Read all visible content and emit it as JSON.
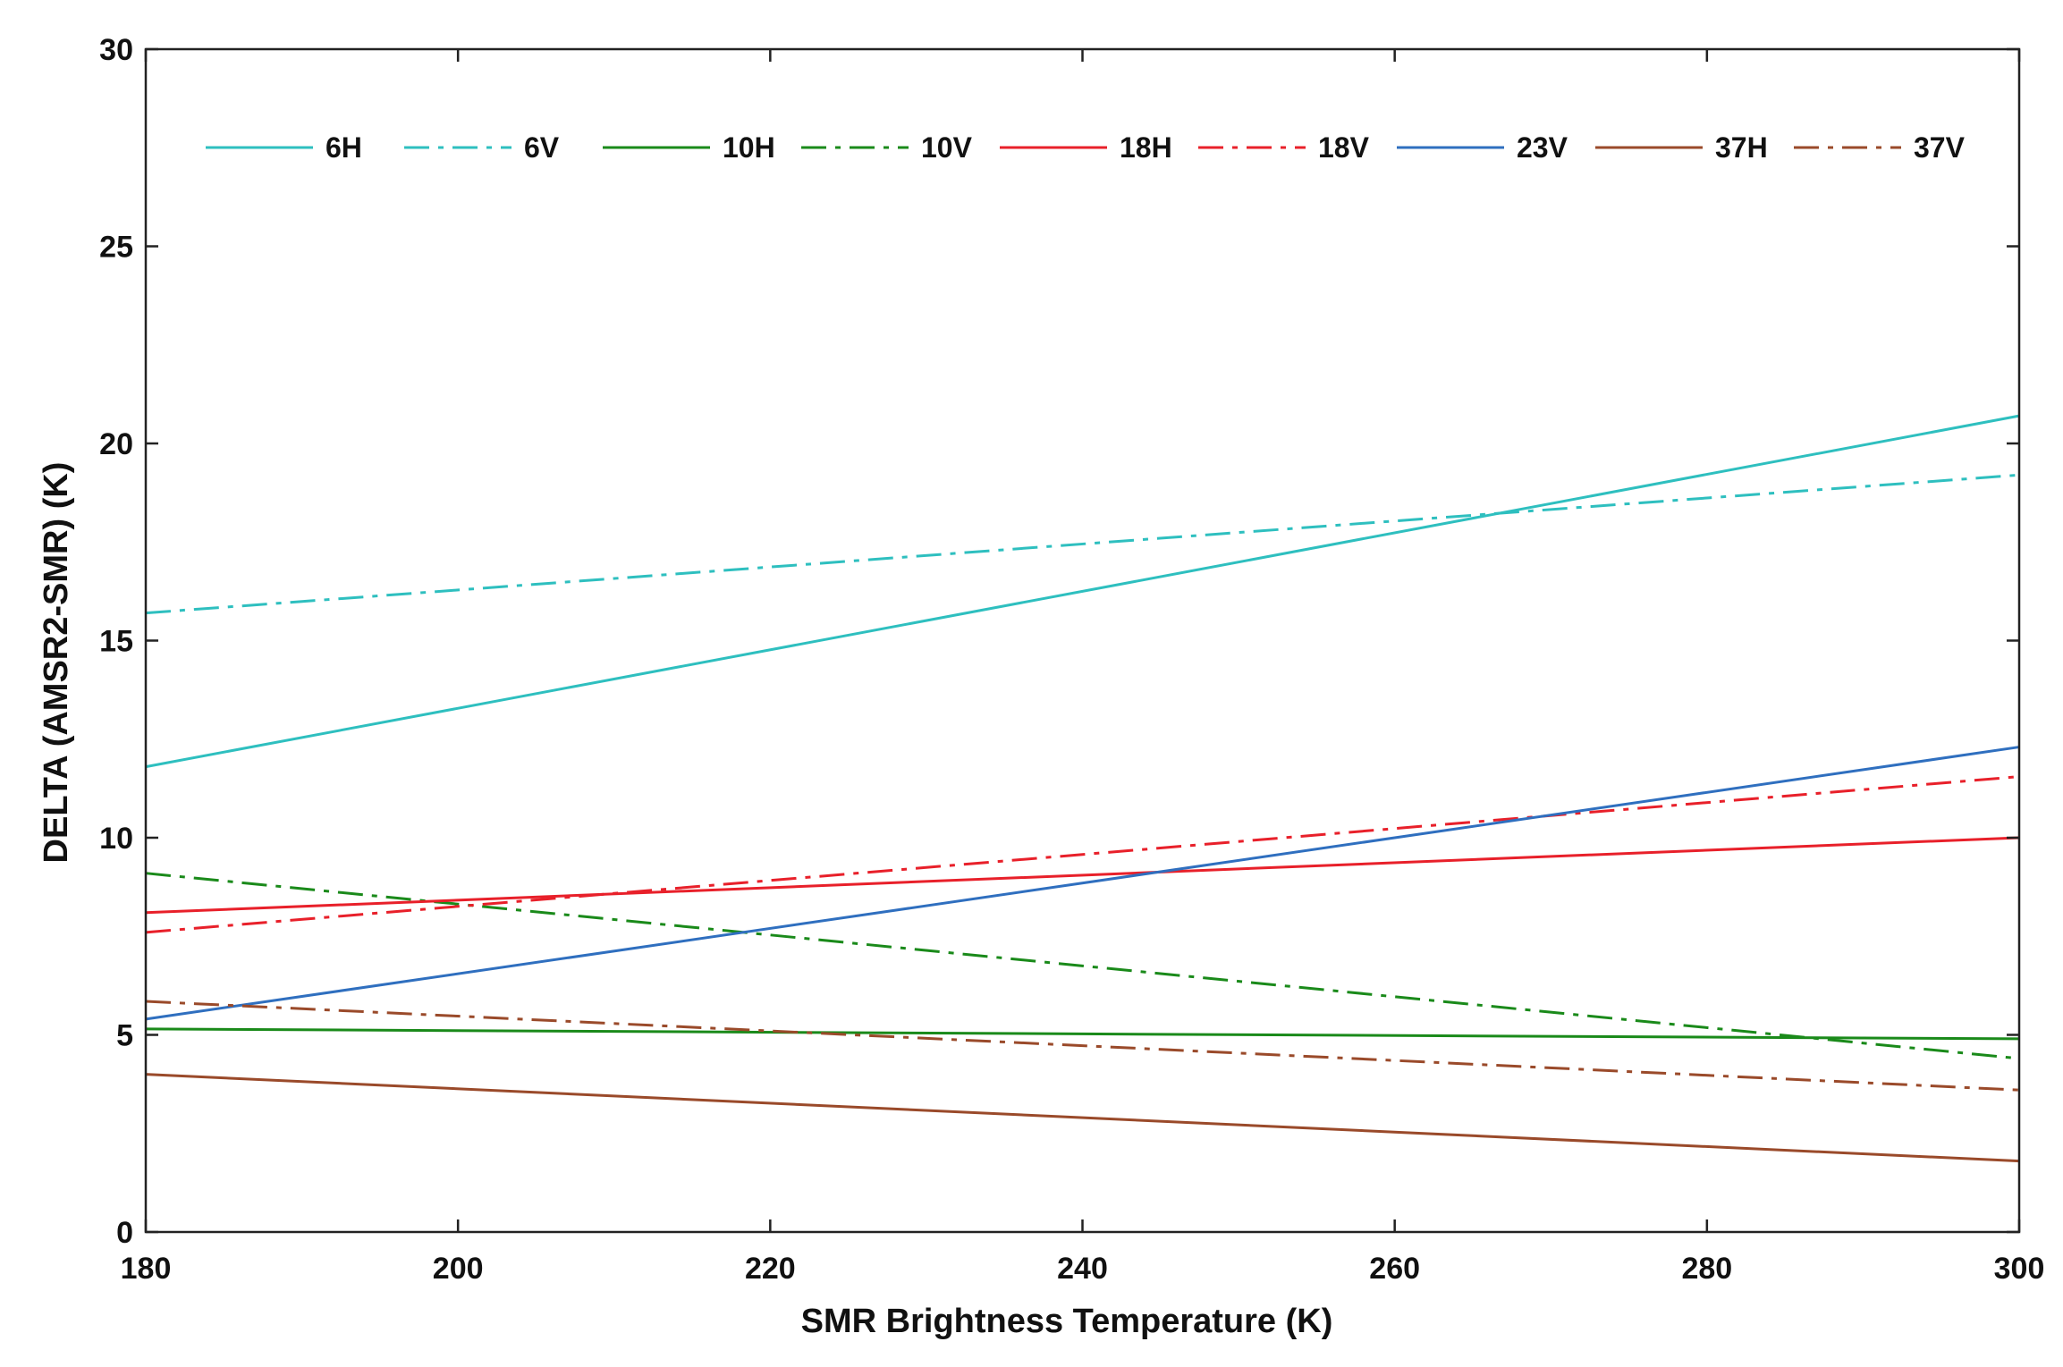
{
  "chart_data": {
    "type": "line",
    "title": "",
    "xlabel": "SMR Brightness Temperature (K)",
    "ylabel": "DELTA (AMSR2-SMR) (K)",
    "xlim": [
      180,
      300
    ],
    "ylim": [
      0,
      30
    ],
    "xticks": [
      180,
      200,
      220,
      240,
      260,
      280,
      300
    ],
    "yticks": [
      0,
      5,
      10,
      15,
      20,
      25,
      30
    ],
    "grid": false,
    "legend_position": "top, single row inside axes",
    "x": [
      180,
      300
    ],
    "series": [
      {
        "name": "6H",
        "values": [
          11.8,
          20.7
        ],
        "color": "#2ebfbf",
        "style": "solid"
      },
      {
        "name": "6V",
        "values": [
          15.7,
          19.2
        ],
        "color": "#2ebfbf",
        "style": "dashdot"
      },
      {
        "name": "10H",
        "values": [
          5.15,
          4.9
        ],
        "color": "#1a8a1a",
        "style": "solid"
      },
      {
        "name": "10V",
        "values": [
          9.1,
          4.4
        ],
        "color": "#1a8a1a",
        "style": "dashdot"
      },
      {
        "name": "18H",
        "values": [
          8.1,
          10.0
        ],
        "color": "#e8202a",
        "style": "solid"
      },
      {
        "name": "18V",
        "values": [
          7.6,
          11.55
        ],
        "color": "#e8202a",
        "style": "dashdot"
      },
      {
        "name": "23V",
        "values": [
          5.4,
          12.3
        ],
        "color": "#2f6fbf",
        "style": "solid"
      },
      {
        "name": "37H",
        "values": [
          4.0,
          1.8
        ],
        "color": "#9a4a2a",
        "style": "solid"
      },
      {
        "name": "37V",
        "values": [
          5.85,
          3.6
        ],
        "color": "#9a4a2a",
        "style": "dashdot"
      }
    ]
  }
}
